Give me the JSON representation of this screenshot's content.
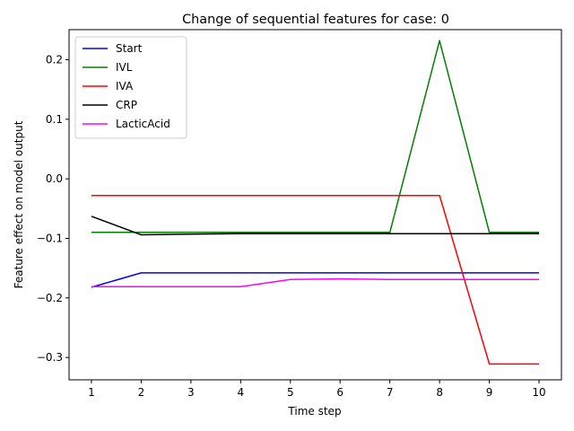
{
  "chart_data": {
    "type": "line",
    "title": "Change of sequential features for case: 0",
    "xlabel": "Time step",
    "ylabel": "Feature effect on model output",
    "x": [
      1,
      2,
      3,
      4,
      5,
      6,
      7,
      8,
      9,
      10
    ],
    "xlim": [
      0.55,
      10.45
    ],
    "ylim": [
      -0.3375,
      0.2505
    ],
    "xticks": [
      "1",
      "2",
      "3",
      "4",
      "5",
      "6",
      "7",
      "8",
      "9",
      "10"
    ],
    "yticks": [
      {
        "value": 0.2,
        "label": "0.2"
      },
      {
        "value": 0.1,
        "label": "0.1"
      },
      {
        "value": 0.0,
        "label": "0.0"
      },
      {
        "value": -0.1,
        "label": "−0.1"
      },
      {
        "value": -0.2,
        "label": "−0.2"
      },
      {
        "value": -0.3,
        "label": "−0.3"
      }
    ],
    "grid": false,
    "legend_position": "top-left",
    "series": [
      {
        "name": "Start",
        "color": "#0000ff",
        "values": [
          -0.182,
          -0.158,
          -0.158,
          -0.158,
          -0.158,
          -0.158,
          -0.158,
          -0.158,
          -0.158,
          -0.158
        ]
      },
      {
        "name": "IVL",
        "color": "#008000",
        "values": [
          -0.09,
          -0.09,
          -0.09,
          -0.09,
          -0.09,
          -0.09,
          -0.09,
          0.232,
          -0.09,
          -0.09
        ]
      },
      {
        "name": "IVA",
        "color": "#ff0000",
        "values": [
          -0.028,
          -0.028,
          -0.028,
          -0.028,
          -0.028,
          -0.028,
          -0.028,
          -0.028,
          -0.311,
          -0.311
        ]
      },
      {
        "name": "CRP",
        "color": "#000000",
        "values": [
          -0.063,
          -0.094,
          -0.093,
          -0.092,
          -0.092,
          -0.092,
          -0.092,
          -0.092,
          -0.092,
          -0.092
        ]
      },
      {
        "name": "LacticAcid",
        "color": "#ff00ff",
        "values": [
          -0.181,
          -0.181,
          -0.181,
          -0.181,
          -0.169,
          -0.168,
          -0.169,
          -0.169,
          -0.169,
          -0.169
        ]
      }
    ]
  }
}
